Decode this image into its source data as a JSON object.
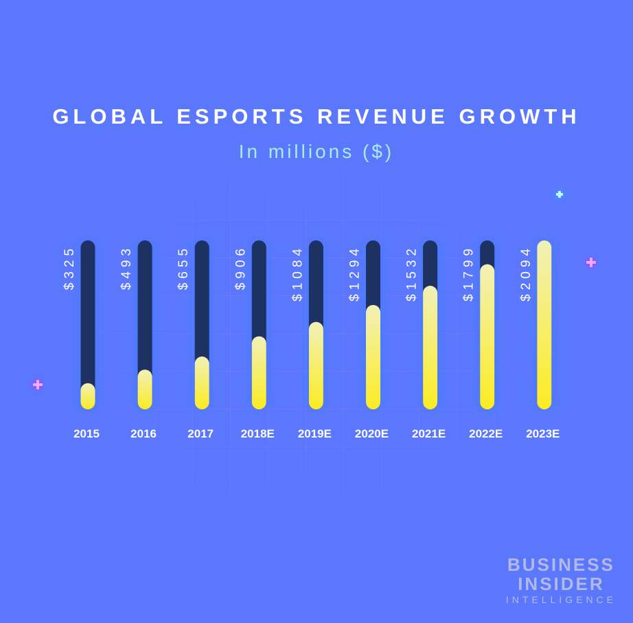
{
  "title": "GLOBAL ESPORTS REVENUE GROWTH",
  "subtitle": "In millions ($)",
  "chart_data": {
    "type": "bar",
    "categories": [
      "2015",
      "2016",
      "2017",
      "2018E",
      "2019E",
      "2020E",
      "2021E",
      "2022E",
      "2023E"
    ],
    "values": [
      325,
      493,
      655,
      906,
      1084,
      1294,
      1532,
      1799,
      2094
    ],
    "value_labels": [
      "$325",
      "$493",
      "$655",
      "$906",
      "$1084",
      "$1294",
      "$1532",
      "$1799",
      "$2094"
    ],
    "ylim": [
      0,
      2094
    ],
    "grid": false
  },
  "colors": {
    "background": "#5b78fd",
    "track": "#1e3163",
    "bar_top": "#f2f0b8",
    "bar_bottom": "#fbec22",
    "title": "#ffffff",
    "subtitle": "#a8ecff"
  },
  "logo": {
    "line1": "BUSINESS",
    "line2": "INSIDER",
    "line3": "INTELLIGENCE"
  }
}
